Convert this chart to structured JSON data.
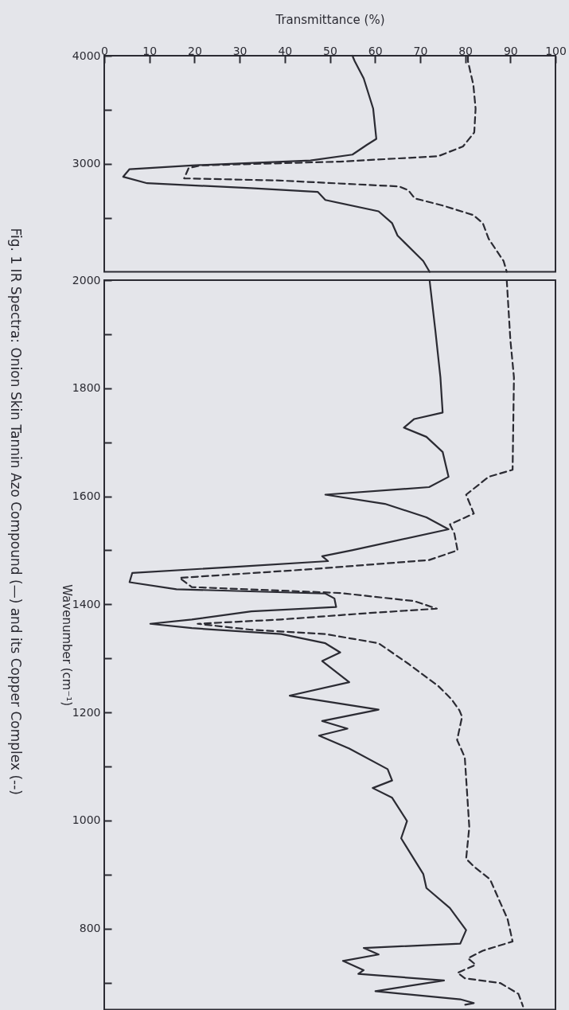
{
  "chart_data": [
    {
      "type": "line",
      "title": "Fig. 1 IR Spectra: Onion Skin Tannin Azo Compound (—) and its Copper Complex (--)",
      "xlabel": "Transmittance (%)",
      "xlim": [
        0,
        100
      ],
      "xticks": [
        0,
        10,
        20,
        30,
        40,
        50,
        60,
        70,
        80,
        90,
        100
      ],
      "ylim": [
        2000,
        4000
      ],
      "yticks": [
        4000,
        {
          "value": 3500,
          "label": null
        },
        3000,
        {
          "value": 2500,
          "label": null
        }
      ],
      "grid": false,
      "series": [
        {
          "color": "#2b2b33",
          "line_style": "solid",
          "values": [
            4000,
            3950,
            3790,
            3510,
            3230,
            3175,
            3085,
            3030,
            2985,
            2950,
            2880,
            2820,
            2775,
            2740,
            2665,
            2560,
            2450,
            2335,
            2100,
            2000
          ],
          "x": [
            55,
            55.5,
            57.5,
            59.6,
            60.3,
            58.2,
            55,
            45.7,
            19.4,
            5.6,
            4.2,
            9.5,
            32.5,
            47.3,
            49,
            60.8,
            63.8,
            65,
            70.7,
            72.1
          ]
        },
        {
          "color": "#2b2b33",
          "line_style": "dashed",
          "values": [
            4000,
            3950,
            3730,
            3510,
            3290,
            3160,
            3070,
            3020,
            2985,
            2960,
            2865,
            2845,
            2790,
            2755,
            2680,
            2610,
            2525,
            2450,
            2305,
            2100,
            2000
          ],
          "x": [
            80.6,
            80.6,
            81.8,
            82.3,
            82,
            79.5,
            74,
            52.3,
            21.4,
            18.7,
            17.7,
            39,
            65.4,
            67.4,
            68.8,
            75.3,
            81.8,
            83.9,
            85.2,
            88.5,
            89.2
          ]
        }
      ]
    },
    {
      "type": "line",
      "ylabel": "Wavenumber (cm⁻¹)",
      "xlim": [
        0,
        100
      ],
      "ylim": [
        650,
        2000
      ],
      "tick_labels": "y",
      "yticks": [
        2000,
        {
          "value": 1900,
          "label": null
        },
        1800,
        {
          "value": 1700,
          "label": null
        },
        1600,
        {
          "value": 1500,
          "label": null
        },
        1400,
        {
          "value": 1300,
          "label": null
        },
        1200,
        {
          "value": 1100,
          "label": null
        },
        1000,
        {
          "value": 900,
          "label": null
        },
        800,
        {
          "value": 700,
          "label": null
        }
      ],
      "grid": false,
      "series": [
        {
          "color": "#2b2b33",
          "line_style": "solid",
          "values": [
            2000,
            1985,
            1905,
            1820,
            1755,
            1743,
            1727,
            1710,
            1682,
            1636,
            1617,
            1603,
            1586,
            1561,
            1539,
            1500,
            1489,
            1480,
            1470,
            1458,
            1441,
            1428,
            1420,
            1411,
            1395,
            1387,
            1372,
            1364,
            1356,
            1345,
            1328,
            1311,
            1295,
            1256,
            1231,
            1205,
            1184,
            1170,
            1157,
            1133,
            1095,
            1074,
            1060,
            1042,
            999,
            967,
            901,
            875,
            838,
            797,
            772,
            764,
            752,
            740,
            723,
            716,
            704,
            684,
            669,
            662,
            659
          ],
          "x": [
            72.1,
            72.3,
            73.4,
            74.5,
            75,
            68.7,
            66.4,
            71.4,
            75,
            76.3,
            72,
            49,
            62.2,
            71.4,
            76.3,
            54.9,
            48.3,
            49.6,
            30,
            6.2,
            5.6,
            16,
            49,
            51,
            51.4,
            32.6,
            19.4,
            10.2,
            19.4,
            39.2,
            49,
            52.3,
            48.3,
            54.3,
            41.1,
            60.8,
            48.3,
            53.9,
            47.6,
            54.3,
            62.8,
            63.8,
            59.5,
            63.8,
            67.1,
            65.8,
            70.7,
            71.4,
            76.6,
            80.2,
            78.9,
            57.5,
            60.8,
            52.9,
            57.5,
            56.3,
            75.3,
            60.1,
            78.9,
            81.9,
            80
          ]
        },
        {
          "color": "#2b2b33",
          "line_style": "dashed",
          "values": [
            2000,
            1890,
            1820,
            1649,
            1636,
            1603,
            1568,
            1548,
            1531,
            1500,
            1482,
            1465,
            1449,
            1432,
            1421,
            1406,
            1392,
            1384,
            1372,
            1364,
            1353,
            1345,
            1328,
            1290,
            1249,
            1224,
            1204,
            1192,
            1149,
            1117,
            988,
            929,
            915,
            891,
            817,
            776,
            759,
            745,
            733,
            718,
            708,
            699,
            679,
            656
          ],
          "x": [
            89.2,
            90,
            90.8,
            90.5,
            85.2,
            80.2,
            81.9,
            76.6,
            77.6,
            78.3,
            72,
            45.7,
            16.7,
            19.4,
            52.3,
            68.7,
            73.7,
            58.9,
            39.2,
            20.7,
            32.6,
            49,
            60.8,
            67.4,
            74,
            77,
            78.7,
            79.3,
            78.2,
            79.9,
            80.9,
            80.2,
            81.9,
            85.5,
            89.4,
            90.5,
            83.9,
            80.6,
            82.3,
            78.3,
            79.9,
            87.8,
            91.8,
            92.8
          ]
        }
      ]
    }
  ]
}
